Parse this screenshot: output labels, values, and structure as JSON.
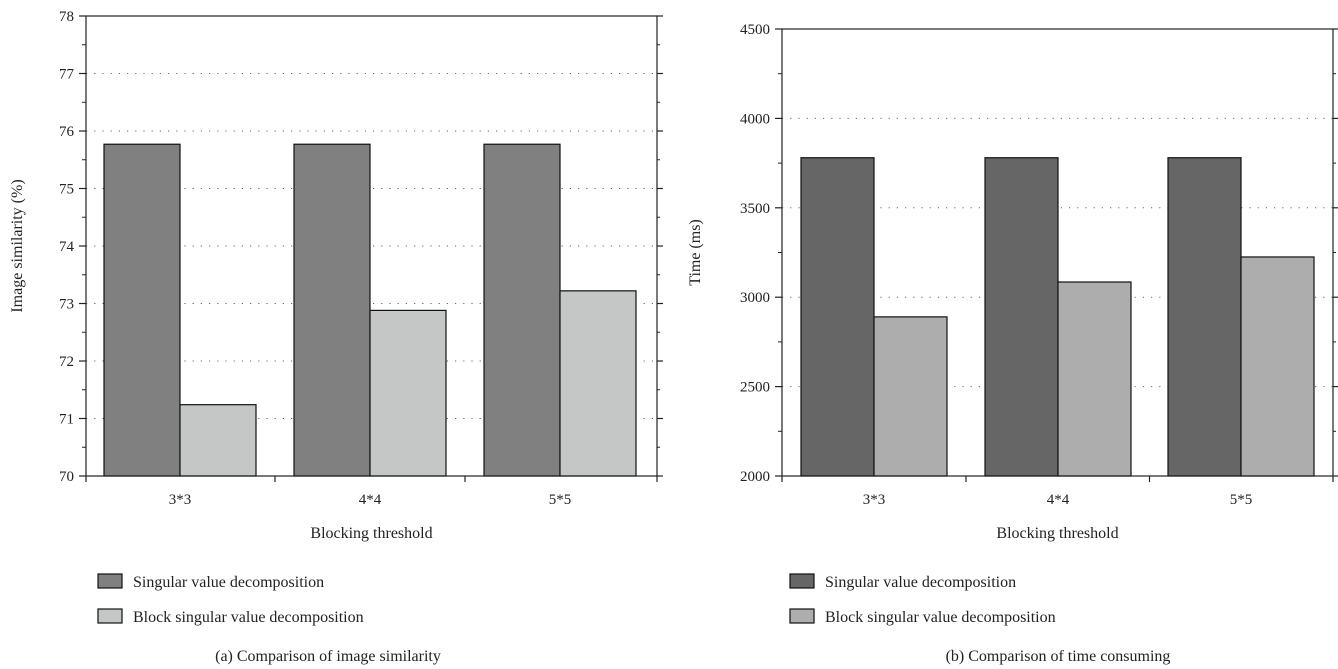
{
  "chart_data": [
    {
      "type": "bar",
      "caption": "(a) Comparison of image similarity",
      "xlabel": "Blocking threshold",
      "ylabel": "Image similarity (%)",
      "categories": [
        "3*3",
        "4*4",
        "5*5"
      ],
      "ylim": [
        70,
        78
      ],
      "yticks": [
        70,
        71,
        72,
        73,
        74,
        75,
        76,
        77,
        78
      ],
      "grid": "horizontal dotted",
      "legend_placement": "below",
      "series": [
        {
          "name": "Singular value decomposition",
          "color": "#808080",
          "values": [
            75.77,
            75.77,
            75.77
          ]
        },
        {
          "name": "Block singular value decomposition",
          "color": "#c5c7c6",
          "values": [
            71.24,
            72.88,
            73.22
          ]
        }
      ]
    },
    {
      "type": "bar",
      "caption": "(b) Comparison of time consuming",
      "xlabel": "Blocking threshold",
      "ylabel": "Time (ms)",
      "categories": [
        "3*3",
        "4*4",
        "5*5"
      ],
      "ylim": [
        2000,
        4500
      ],
      "yticks": [
        2000,
        2500,
        3000,
        3500,
        4000,
        4500
      ],
      "grid": "horizontal dotted",
      "legend_placement": "below",
      "series": [
        {
          "name": "Singular value decomposition",
          "color": "#666666",
          "values": [
            3780,
            3780,
            3780
          ]
        },
        {
          "name": "Block singular value decomposition",
          "color": "#adadad",
          "values": [
            2890,
            3085,
            3225
          ]
        }
      ]
    }
  ]
}
